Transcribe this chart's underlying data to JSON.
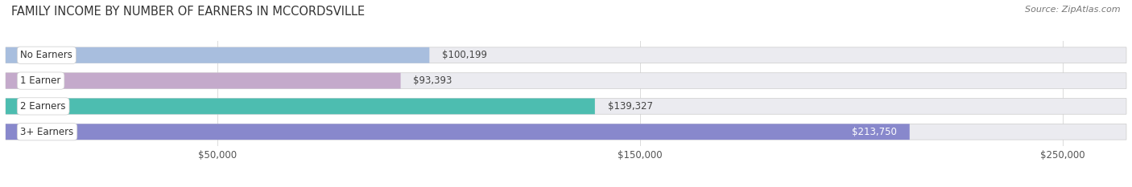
{
  "title": "FAMILY INCOME BY NUMBER OF EARNERS IN MCCORDSVILLE",
  "source": "Source: ZipAtlas.com",
  "categories": [
    "No Earners",
    "1 Earner",
    "2 Earners",
    "3+ Earners"
  ],
  "values": [
    100199,
    93393,
    139327,
    213750
  ],
  "bar_colors": [
    "#a8bede",
    "#c4aacb",
    "#4dbdb0",
    "#8888cc"
  ],
  "label_colors": [
    "#000000",
    "#000000",
    "#000000",
    "#ffffff"
  ],
  "value_labels": [
    "$100,199",
    "$93,393",
    "$139,327",
    "$213,750"
  ],
  "xmin": 0,
  "xmax": 265000,
  "xticks": [
    50000,
    150000,
    250000
  ],
  "xtick_labels": [
    "$50,000",
    "$150,000",
    "$250,000"
  ],
  "bar_height": 0.62,
  "background_color": "#ffffff",
  "bar_bg_color": "#ebebf0",
  "title_fontsize": 10.5,
  "source_fontsize": 8,
  "label_fontsize": 8.5,
  "value_fontsize": 8.5,
  "tick_fontsize": 8.5
}
